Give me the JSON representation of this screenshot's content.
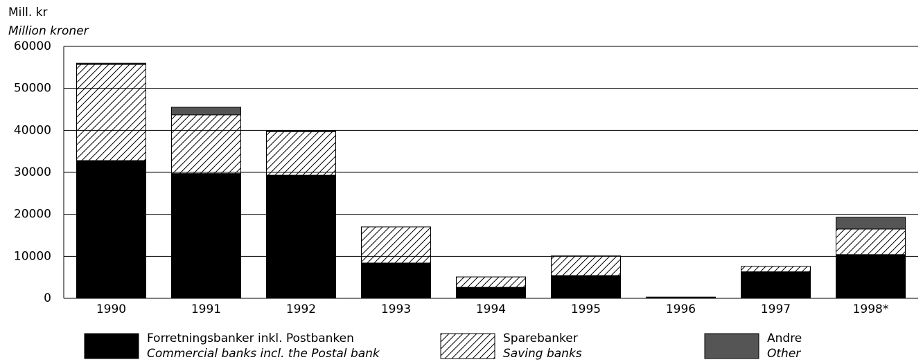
{
  "chart_data": {
    "type": "stacked_bar",
    "y_label": "Mill. kr",
    "y_label_en": "Million kroner",
    "categories": [
      "1990",
      "1991",
      "1992",
      "1993",
      "1994",
      "1995",
      "1996",
      "1997",
      "1998*"
    ],
    "series": [
      {
        "name": "Forretningsbanker inkl. Postbanken",
        "name_en": "Commercial banks incl. the Postal bank",
        "color": "#000000",
        "values": [
          32800,
          29700,
          29300,
          8400,
          2600,
          5400,
          300,
          6300,
          10400
        ]
      },
      {
        "name": "Sparebanker",
        "name_en": "Saving banks",
        "color": "#ffffff",
        "pattern": "hatch",
        "values": [
          22900,
          14000,
          10400,
          8600,
          2500,
          4700,
          0,
          1300,
          6100
        ]
      },
      {
        "name": "Andre",
        "name_en": "Other",
        "color": "#555555",
        "values": [
          300,
          1800,
          200,
          0,
          0,
          0,
          0,
          0,
          2800
        ]
      }
    ],
    "ylim": [
      0,
      60000
    ],
    "yticks": [
      0,
      10000,
      20000,
      30000,
      40000,
      50000,
      60000
    ],
    "grid": true
  }
}
